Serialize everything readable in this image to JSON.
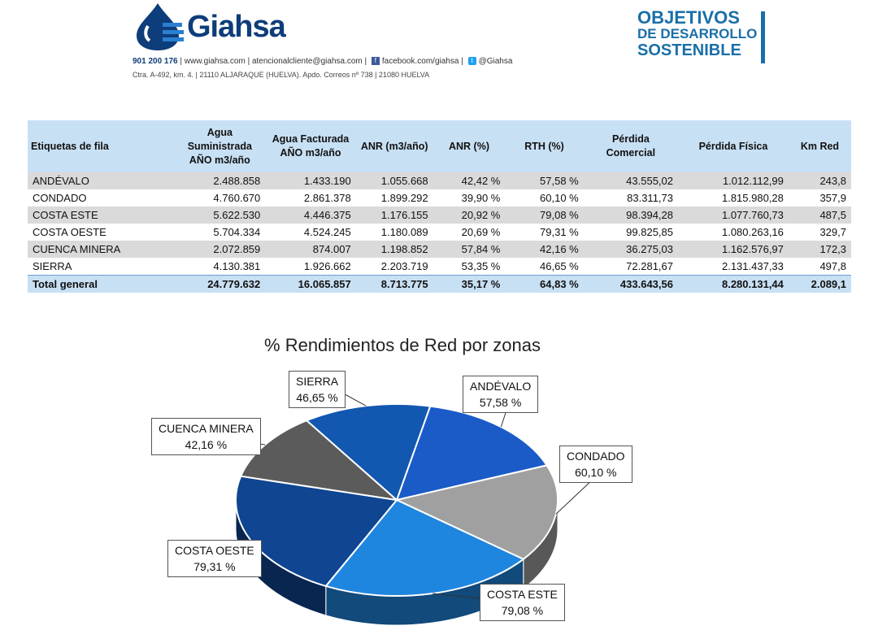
{
  "header": {
    "brand": "Giahsa",
    "contact_phone": "901 200 176",
    "contact_rest": " | www.giahsa.com | atencionalcliente@giahsa.com | ",
    "facebook": "facebook.com/giahsa",
    "twitter": "@Giahsa",
    "address": "Ctra. A-492, km. 4. | 21110 ALJARAQUE (HUELVA). Apdo. Correos nº 738 | 21080 HUELVA",
    "ods_line1": "OBJETIVOS",
    "ods_line2": "DE DESARROLLO",
    "ods_line3": "SOSTENIBLE"
  },
  "table": {
    "headers": [
      "Etiquetas de fila",
      "Agua Suministrada AÑO m3/año",
      "Agua Facturada AÑO m3/año",
      "ANR (m3/año)",
      "ANR (%)",
      "RTH (%)",
      "Pérdida Comercial",
      "Pérdida Física",
      "Km Red"
    ],
    "rows": [
      [
        "ANDÉVALO",
        "2.488.858",
        "1.433.190",
        "1.055.668",
        "42,42 %",
        "57,58 %",
        "43.555,02",
        "1.012.112,99",
        "243,8"
      ],
      [
        "CONDADO",
        "4.760.670",
        "2.861.378",
        "1.899.292",
        "39,90 %",
        "60,10 %",
        "83.311,73",
        "1.815.980,28",
        "357,9"
      ],
      [
        "COSTA ESTE",
        "5.622.530",
        "4.446.375",
        "1.176.155",
        "20,92 %",
        "79,08 %",
        "98.394,28",
        "1.077.760,73",
        "487,5"
      ],
      [
        "COSTA OESTE",
        "5.704.334",
        "4.524.245",
        "1.180.089",
        "20,69 %",
        "79,31 %",
        "99.825,85",
        "1.080.263,16",
        "329,7"
      ],
      [
        "CUENCA MINERA",
        "2.072.859",
        "874.007",
        "1.198.852",
        "57,84 %",
        "42,16 %",
        "36.275,03",
        "1.162.576,97",
        "172,3"
      ],
      [
        "SIERRA",
        "4.130.381",
        "1.926.662",
        "2.203.719",
        "53,35 %",
        "46,65 %",
        "72.281,67",
        "2.131.437,33",
        "497,8"
      ]
    ],
    "total": [
      "Total general",
      "24.779.632",
      "16.065.857",
      "8.713.775",
      "35,17 %",
      "64,83 %",
      "433.643,56",
      "8.280.131,44",
      "2.089,1"
    ]
  },
  "chart_data": {
    "type": "pie",
    "title": "% Rendimientos de Red por zonas",
    "categories": [
      "ANDÉVALO",
      "CONDADO",
      "COSTA ESTE",
      "COSTA OESTE",
      "CUENCA MINERA",
      "SIERRA"
    ],
    "values": [
      57.58,
      60.1,
      79.08,
      79.31,
      42.16,
      46.65
    ],
    "value_labels": [
      "57,58 %",
      "60,10 %",
      "79,08 %",
      "79,31 %",
      "42,16 %",
      "46,65 %"
    ],
    "colors": [
      "#1a5bc8",
      "#a0a0a0",
      "#1f86e0",
      "#0f4591",
      "#5b5b5b",
      "#1257b0"
    ],
    "style": "3d"
  }
}
